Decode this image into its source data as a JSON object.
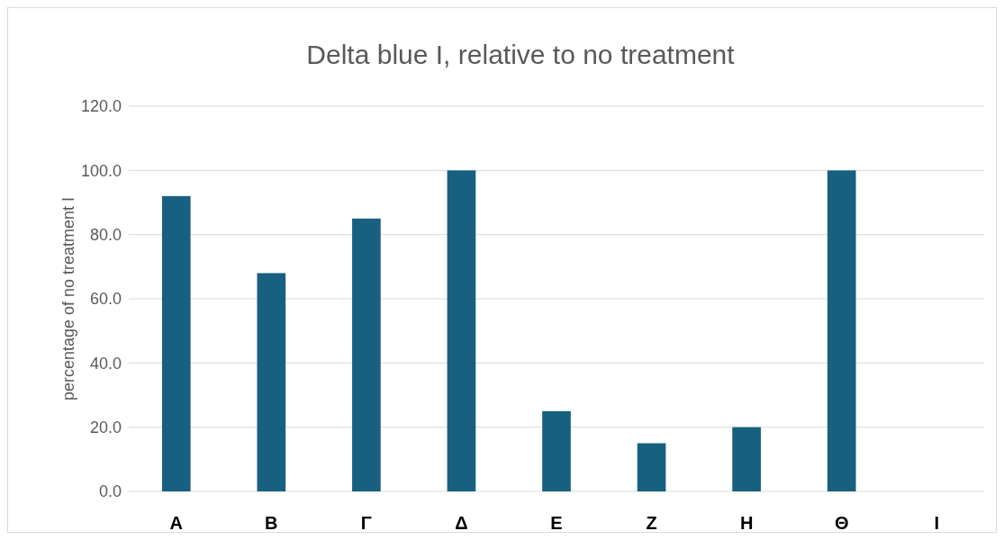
{
  "chart_data": {
    "type": "bar",
    "title": "Delta blue I, relative to no treatment",
    "ylabel": "percentage of no treatment I",
    "categories": [
      "A",
      "B",
      "Γ",
      "Δ",
      "E",
      "Z",
      "H",
      "Θ",
      "I"
    ],
    "values": [
      92,
      68,
      85,
      100,
      25,
      15,
      20,
      100,
      null
    ],
    "color": "#17607f",
    "ylim": [
      0,
      120
    ],
    "yticks": [
      {
        "value": 0,
        "label": "0.0"
      },
      {
        "value": 20,
        "label": "20.0"
      },
      {
        "value": 40,
        "label": "40.0"
      },
      {
        "value": 60,
        "label": "60.0"
      },
      {
        "value": 80,
        "label": "80.0"
      },
      {
        "value": 100,
        "label": "100.0"
      },
      {
        "value": 120,
        "label": "120.0"
      }
    ],
    "grid": "y"
  }
}
